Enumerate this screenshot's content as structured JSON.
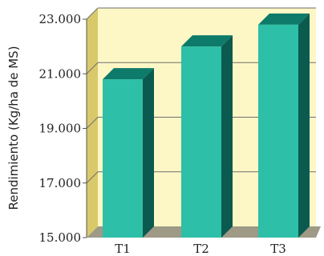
{
  "chart_data": {
    "type": "bar",
    "title": "",
    "xlabel": "",
    "ylabel": "Rendimiento (Kg/ha de MS)",
    "categories": [
      "T1",
      "T2",
      "T3"
    ],
    "values": [
      20.8,
      22.0,
      22.8
    ],
    "ylim": [
      15.0,
      23.0
    ],
    "yticks": [
      15.0,
      17.0,
      19.0,
      21.0,
      23.0
    ],
    "ytick_labels": [
      "15.000",
      "17.000",
      "19.000",
      "21.000",
      "23.000"
    ],
    "grid": true,
    "style": "3d",
    "colors": {
      "bar_front": "#2dbfa8",
      "bar_top": "#0e7a6a",
      "bar_side": "#0b5a4f",
      "back_wall": "#fdf7c6",
      "left_wall": "#d9c96a",
      "floor": "#9e9a86",
      "grid": "#6e6e6e"
    }
  }
}
